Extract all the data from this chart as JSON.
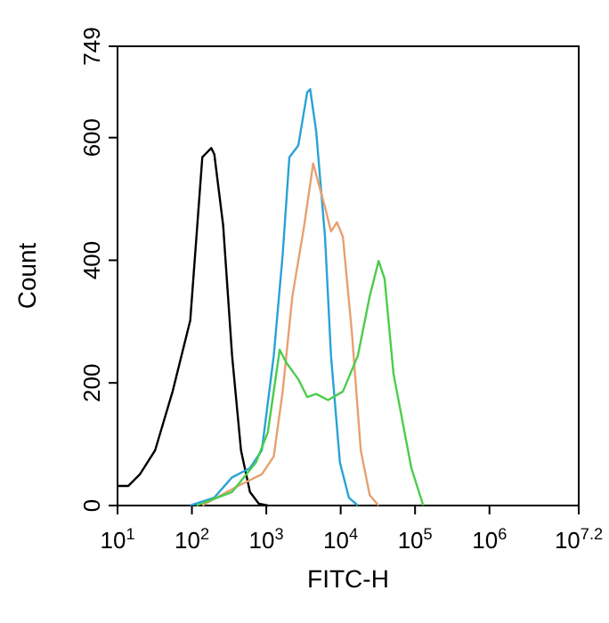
{
  "chart_data": {
    "type": "line",
    "xlabel": "FITC-H",
    "ylabel": "Count",
    "log": "x",
    "grid": false,
    "marker": "none",
    "line_style": "solid",
    "xlim": [
      10,
      15848932
    ],
    "ylim": [
      0,
      749
    ],
    "xticks": [
      {
        "value": 10,
        "label": "10$^{1}$"
      },
      {
        "value": 100,
        "label": "10$^{2}$"
      },
      {
        "value": 1000,
        "label": "10$^{3}$"
      },
      {
        "value": 10000,
        "label": "10$^{4}$"
      },
      {
        "value": 100000,
        "label": "10$^{5}$"
      },
      {
        "value": 1000000,
        "label": "10$^{6}$"
      },
      {
        "value": 15848932,
        "label": "10$^{7.2}$"
      }
    ],
    "yticks": [
      0,
      200,
      400,
      600,
      749
    ],
    "series": [
      {
        "color": "#000000",
        "x": [
          10,
          14,
          20,
          32,
          55,
          95,
          138,
          151,
          182,
          200,
          263,
          347,
          457,
          603,
          794,
          1047
        ],
        "values": [
          32,
          32,
          51,
          90,
          186,
          302,
          568,
          573,
          583,
          573,
          457,
          244,
          90,
          22,
          3,
          0
        ]
      },
      {
        "color": "#29a3d6",
        "x": [
          95,
          200,
          347,
          603,
          871,
          1259,
          1660,
          2042,
          2692,
          3548,
          3890,
          4677,
          6166,
          7413,
          9772,
          12882,
          16982
        ],
        "values": [
          0,
          13,
          46,
          61,
          90,
          244,
          409,
          568,
          587,
          674,
          679,
          611,
          437,
          244,
          70,
          13,
          0
        ]
      },
      {
        "color": "#e8a070",
        "x": [
          138,
          417,
          871,
          1259,
          1660,
          2239,
          3236,
          4266,
          6166,
          7413,
          8913,
          10715,
          14125,
          18621,
          24547,
          32359
        ],
        "values": [
          0,
          32,
          51,
          80,
          186,
          341,
          457,
          558,
          486,
          447,
          462,
          438,
          283,
          90,
          17,
          0
        ]
      },
      {
        "color": "#4ccc4c",
        "x": [
          115,
          347,
          724,
          1047,
          1514,
          1862,
          2692,
          3548,
          4677,
          6761,
          10715,
          16982,
          24547,
          32359,
          38905,
          51286,
          89125,
          128825
        ],
        "values": [
          0,
          22,
          70,
          119,
          254,
          233,
          206,
          177,
          182,
          172,
          186,
          244,
          341,
          399,
          370,
          215,
          61,
          0
        ]
      }
    ]
  }
}
